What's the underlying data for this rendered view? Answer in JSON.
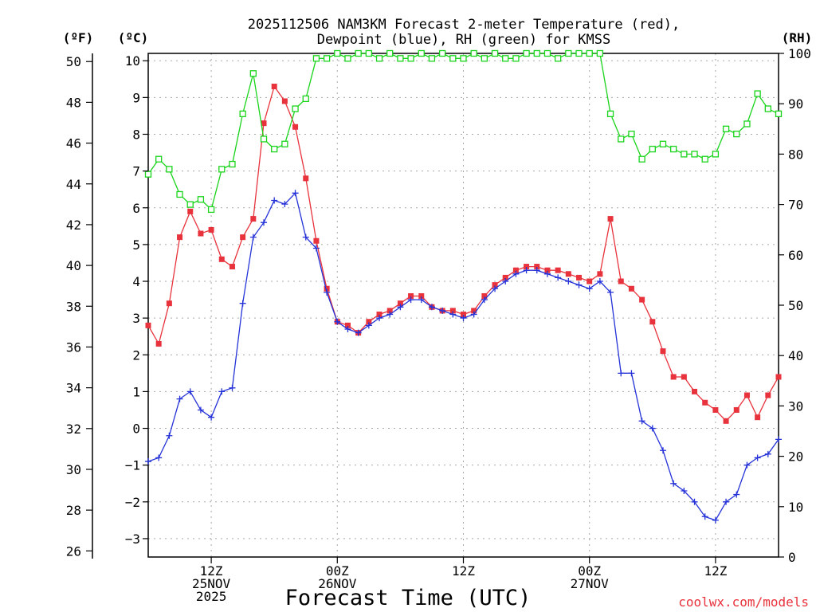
{
  "chart_data": {
    "type": "line",
    "title_line1": "2025112506 NAM3KM Forecast 2-meter Temperature (red),",
    "title_line2": "Dewpoint (blue), RH (green) for KMSS",
    "xlabel": "Forecast Time (UTC)",
    "credit": "coolwx.com/models",
    "units": {
      "f": "(ºF)",
      "c": "(ºC)",
      "rh": "(RH)"
    },
    "ylim_c": [
      -3.5,
      10.2
    ],
    "ylim_f": [
      25.7,
      50.4
    ],
    "ylim_rh": [
      0,
      100
    ],
    "yticks_c": [
      "10",
      "9",
      "8",
      "7",
      "6",
      "5",
      "4",
      "3",
      "2",
      "1",
      "0",
      "−1",
      "−2",
      "−3"
    ],
    "yticks_f": [
      "50",
      "48",
      "46",
      "44",
      "42",
      "40",
      "38",
      "36",
      "34",
      "32",
      "30",
      "28",
      "26"
    ],
    "yticks_rh": [
      "100",
      "90",
      "80",
      "70",
      "60",
      "50",
      "40",
      "30",
      "20",
      "10",
      "0"
    ],
    "x_range_hours": [
      6,
      66
    ],
    "x_ticks": [
      {
        "hour": 12,
        "lines": [
          "12Z",
          "25NOV",
          "2025"
        ]
      },
      {
        "hour": 24,
        "lines": [
          "00Z",
          "26NOV"
        ]
      },
      {
        "hour": 36,
        "lines": [
          "12Z"
        ]
      },
      {
        "hour": 48,
        "lines": [
          "00Z",
          "27NOV"
        ]
      },
      {
        "hour": 60,
        "lines": [
          "12Z"
        ]
      }
    ],
    "x_hours": [
      6,
      7,
      8,
      9,
      10,
      11,
      12,
      13,
      14,
      15,
      16,
      17,
      18,
      19,
      20,
      21,
      22,
      23,
      24,
      25,
      26,
      27,
      28,
      29,
      30,
      31,
      32,
      33,
      34,
      35,
      36,
      37,
      38,
      39,
      40,
      41,
      42,
      43,
      44,
      45,
      46,
      47,
      48,
      49,
      50,
      51,
      52,
      53,
      54,
      55,
      56,
      57,
      58,
      59,
      60,
      61,
      62,
      63,
      64,
      65,
      66
    ],
    "series": [
      {
        "name": "Temperature",
        "color": "#e8323c",
        "marker": "filled-square",
        "axis": "c",
        "values": [
          2.8,
          2.3,
          3.4,
          5.2,
          5.9,
          5.3,
          5.4,
          4.6,
          4.4,
          5.2,
          5.7,
          8.3,
          9.3,
          8.9,
          8.2,
          6.8,
          5.1,
          3.8,
          2.9,
          2.8,
          2.6,
          2.9,
          3.1,
          3.2,
          3.4,
          3.6,
          3.6,
          3.3,
          3.2,
          3.2,
          3.1,
          3.2,
          3.6,
          3.9,
          4.1,
          4.3,
          4.4,
          4.4,
          4.3,
          4.3,
          4.2,
          4.1,
          4.0,
          4.2,
          5.7,
          4.0,
          3.8,
          3.5,
          2.9,
          2.1,
          1.4,
          1.4,
          1.0,
          0.7,
          0.5,
          0.2,
          0.5,
          0.9,
          0.3,
          0.9,
          1.4
        ]
      },
      {
        "name": "Dewpoint",
        "color": "#2432d8",
        "marker": "plus",
        "axis": "c",
        "values": [
          -0.9,
          -0.8,
          -0.2,
          0.8,
          1.0,
          0.5,
          0.3,
          1.0,
          1.1,
          3.4,
          5.2,
          5.6,
          6.2,
          6.1,
          6.4,
          5.2,
          4.9,
          3.7,
          2.9,
          2.7,
          2.6,
          2.8,
          3.0,
          3.1,
          3.3,
          3.5,
          3.5,
          3.3,
          3.2,
          3.1,
          3.0,
          3.1,
          3.5,
          3.8,
          4.0,
          4.2,
          4.3,
          4.3,
          4.2,
          4.1,
          4.0,
          3.9,
          3.8,
          4.0,
          3.7,
          1.5,
          1.5,
          0.2,
          0.0,
          -0.6,
          -1.5,
          -1.7,
          -2.0,
          -2.4,
          -2.5,
          -2.0,
          -1.8,
          -1.0,
          -0.8,
          -0.7,
          -0.3
        ]
      },
      {
        "name": "RH",
        "color": "#19d41a",
        "marker": "open-square",
        "axis": "rh",
        "values": [
          76,
          79,
          77,
          72,
          70,
          71,
          69,
          77,
          78,
          88,
          96,
          83,
          81,
          82,
          89,
          91,
          99,
          99,
          100,
          99,
          100,
          100,
          99,
          100,
          99,
          99,
          100,
          99,
          100,
          99,
          99,
          100,
          99,
          100,
          99,
          99,
          100,
          100,
          100,
          99,
          100,
          100,
          100,
          100,
          88,
          83,
          84,
          79,
          81,
          82,
          81,
          80,
          80,
          79,
          80,
          85,
          84,
          86,
          92,
          89,
          88
        ]
      }
    ]
  }
}
